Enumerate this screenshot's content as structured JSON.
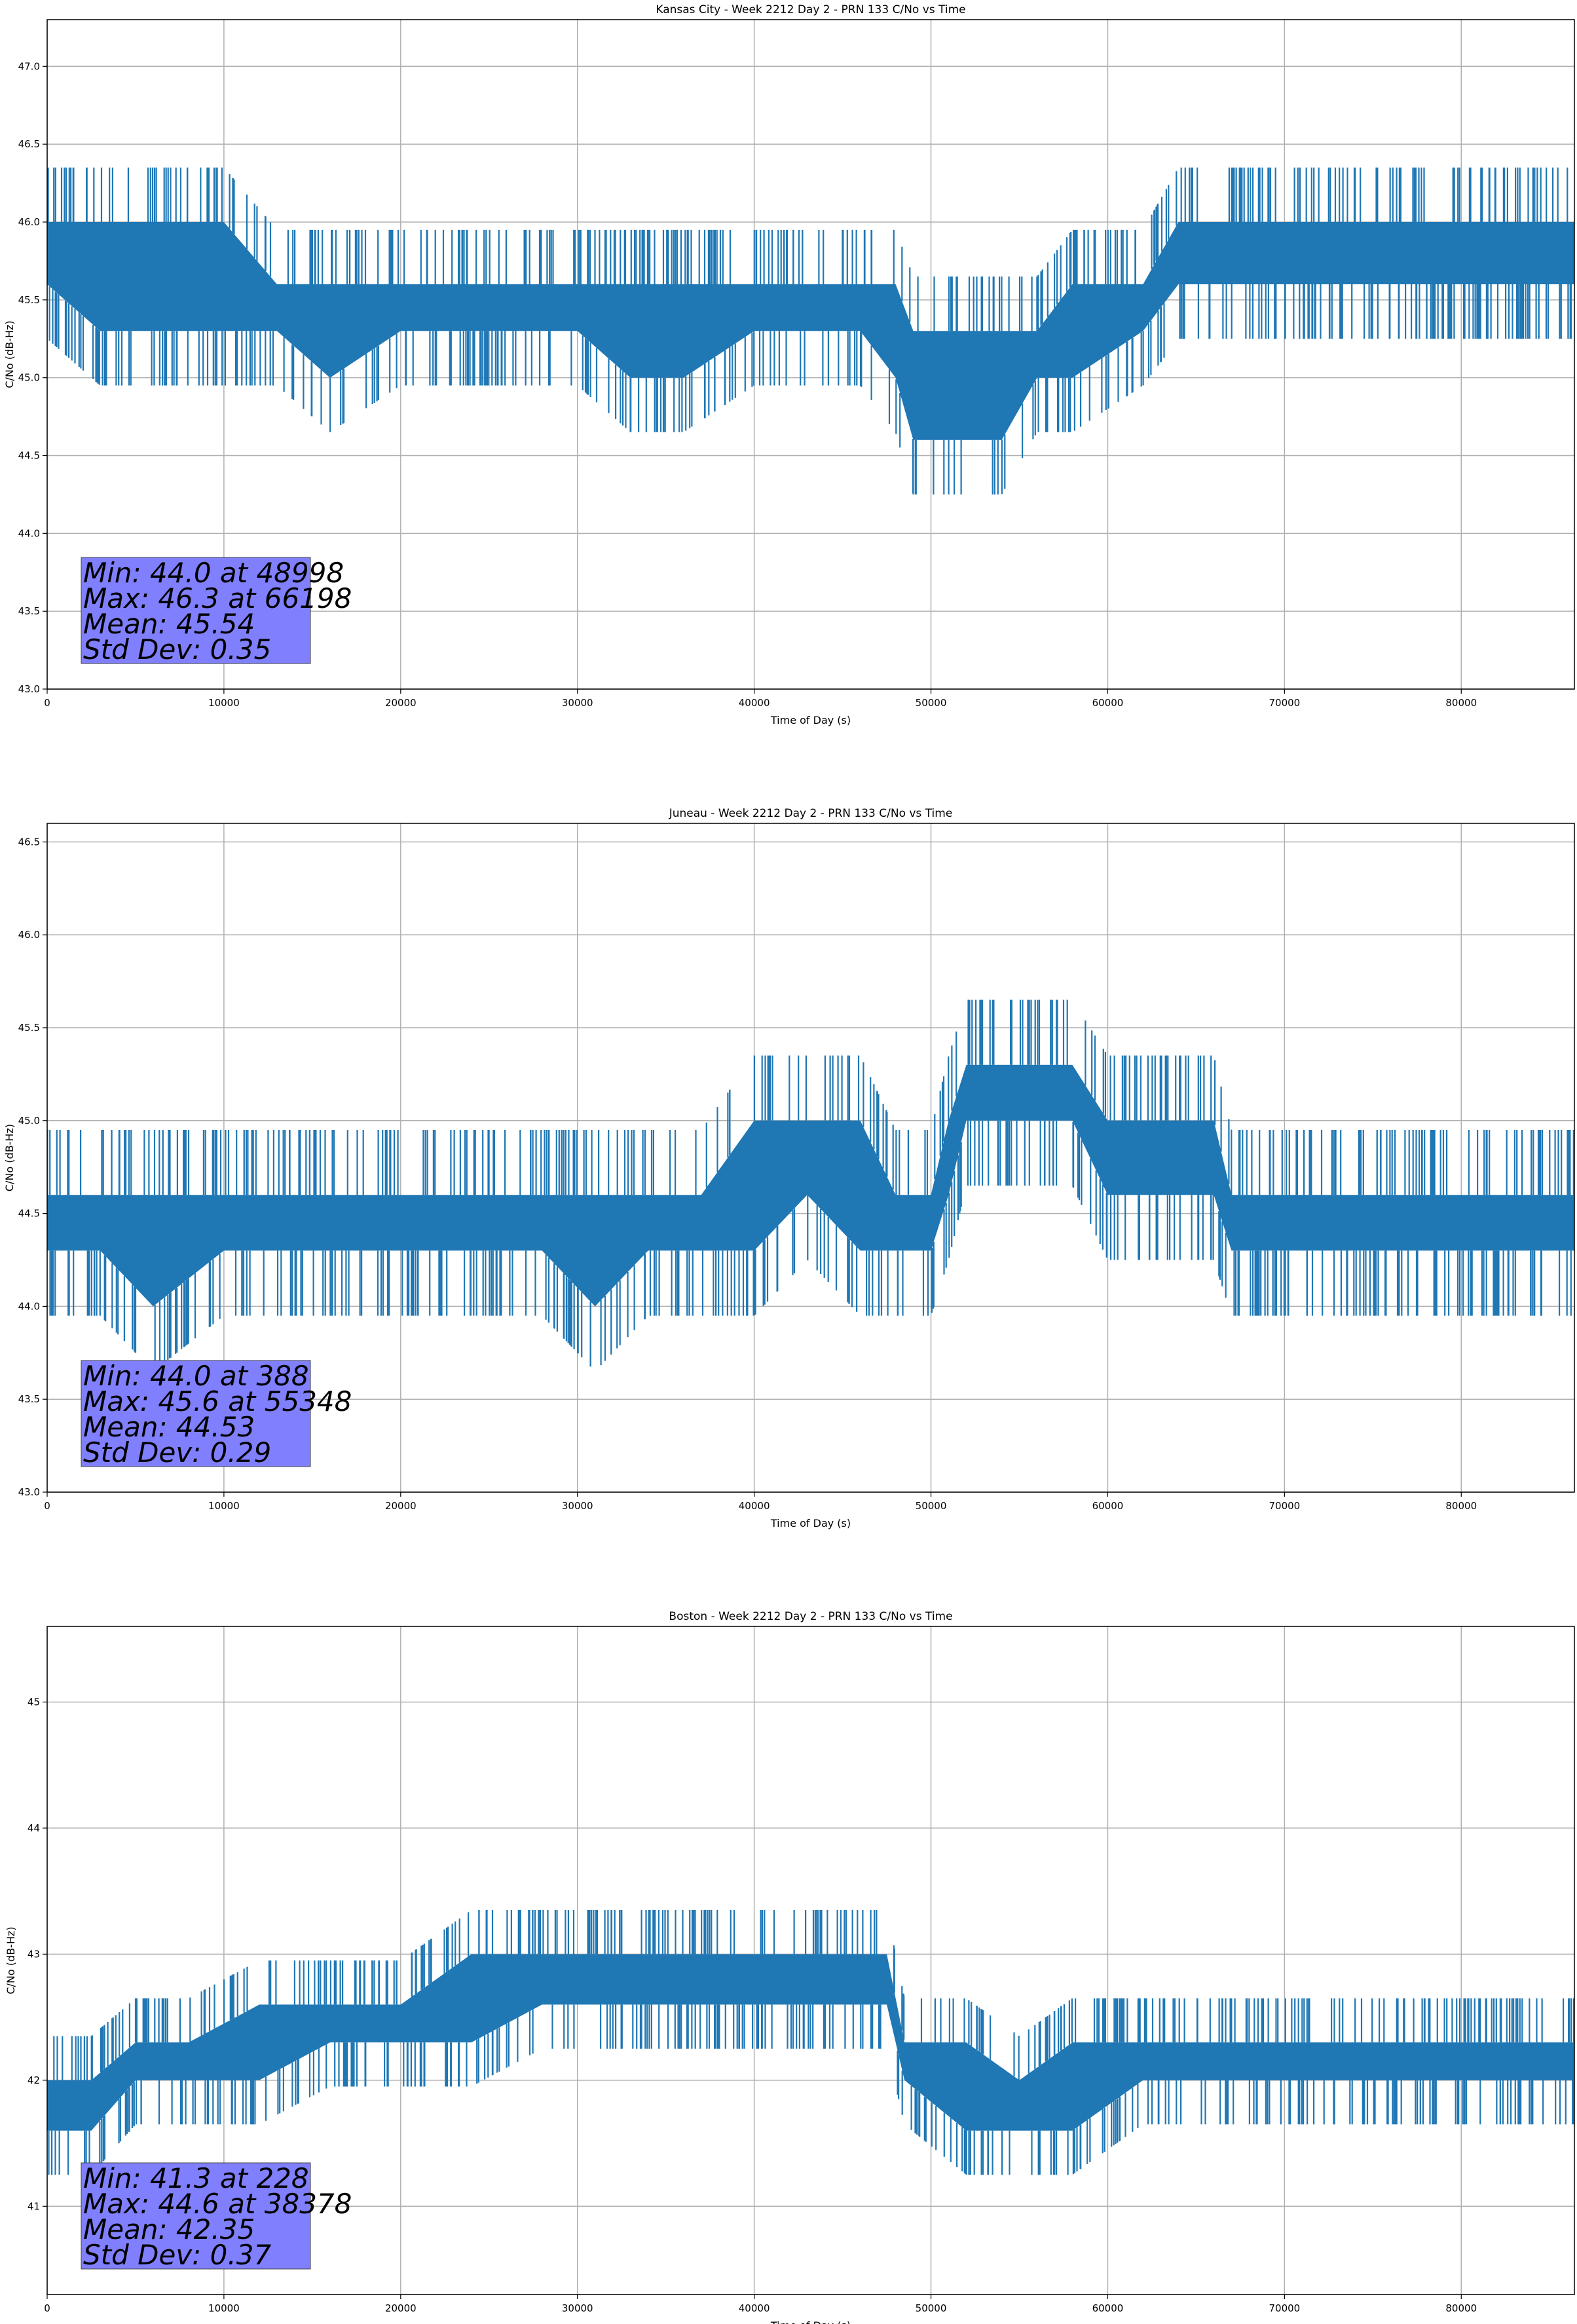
{
  "chart_data": [
    {
      "type": "line",
      "title": "Kansas City - Week 2212 Day 2 - PRN 133 C/No vs Time",
      "xlabel": "Time of Day (s)",
      "ylabel": "C/No (dB-Hz)",
      "xlim": [
        0,
        86400
      ],
      "ylim": [
        43.0,
        47.3
      ],
      "xticks": [
        0,
        10000,
        20000,
        30000,
        40000,
        50000,
        60000,
        70000,
        80000
      ],
      "yticks": [
        "43.0",
        "43.5",
        "44.0",
        "44.5",
        "45.0",
        "45.5",
        "46.0",
        "46.5",
        "47.0"
      ],
      "grid": true,
      "color": "#1f77b4",
      "series": [
        {
          "x": [
            0,
            3000,
            6000,
            10000,
            13000,
            16000,
            20000,
            24000,
            28000,
            30000,
            33000,
            36000,
            40000,
            44000,
            46000,
            48000,
            49000,
            50000,
            52000,
            54000,
            56000,
            58000,
            62000,
            64000,
            66000,
            70000,
            75000,
            80000,
            84000,
            86400
          ],
          "y_low": [
            45.6,
            45.3,
            45.3,
            45.3,
            45.3,
            45.0,
            45.3,
            45.3,
            45.3,
            45.3,
            45.0,
            45.0,
            45.3,
            45.3,
            45.3,
            45.0,
            44.6,
            44.6,
            44.6,
            44.6,
            45.0,
            45.0,
            45.3,
            45.6,
            45.6,
            45.6,
            45.6,
            45.6,
            45.6,
            45.6
          ],
          "y_high": [
            46.0,
            46.0,
            46.0,
            46.0,
            45.6,
            45.6,
            45.6,
            45.6,
            45.6,
            45.6,
            45.6,
            45.6,
            45.6,
            45.6,
            45.6,
            45.6,
            45.3,
            45.3,
            45.3,
            45.3,
            45.3,
            45.6,
            45.6,
            46.0,
            46.0,
            46.0,
            46.0,
            46.0,
            46.0,
            46.0
          ]
        }
      ],
      "annotation": [
        "Min: 44.0 at 48998",
        "Max: 46.3 at 66198",
        "Mean: 45.54",
        "Std Dev: 0.35"
      ],
      "annotation_color": "#8080ff"
    },
    {
      "type": "line",
      "title": "Juneau - Week 2212 Day 2 - PRN 133 C/No vs Time",
      "xlabel": "Time of Day (s)",
      "ylabel": "C/No (dB-Hz)",
      "xlim": [
        0,
        86400
      ],
      "ylim": [
        43.0,
        46.6
      ],
      "xticks": [
        0,
        10000,
        20000,
        30000,
        40000,
        50000,
        60000,
        70000,
        80000
      ],
      "yticks": [
        "43.0",
        "43.5",
        "44.0",
        "44.5",
        "45.0",
        "45.5",
        "46.0",
        "46.5"
      ],
      "grid": true,
      "color": "#1f77b4",
      "series": [
        {
          "x": [
            0,
            3000,
            6000,
            10000,
            15000,
            20000,
            25000,
            28000,
            31000,
            34000,
            37000,
            40000,
            43000,
            46000,
            48000,
            50000,
            51000,
            52000,
            55000,
            58000,
            60000,
            63000,
            66000,
            67000,
            70000,
            75000,
            80000,
            84000,
            86400
          ],
          "y_low": [
            44.3,
            44.3,
            44.0,
            44.3,
            44.3,
            44.3,
            44.3,
            44.3,
            44.0,
            44.3,
            44.3,
            44.3,
            44.6,
            44.3,
            44.3,
            44.3,
            44.6,
            45.0,
            45.0,
            45.0,
            44.6,
            44.6,
            44.6,
            44.3,
            44.3,
            44.3,
            44.3,
            44.3,
            44.3
          ],
          "y_high": [
            44.6,
            44.6,
            44.6,
            44.6,
            44.6,
            44.6,
            44.6,
            44.6,
            44.6,
            44.6,
            44.6,
            45.0,
            45.0,
            45.0,
            44.6,
            44.6,
            45.0,
            45.3,
            45.3,
            45.3,
            45.0,
            45.0,
            45.0,
            44.6,
            44.6,
            44.6,
            44.6,
            44.6,
            44.6
          ]
        }
      ],
      "annotation": [
        "Min: 44.0 at 388",
        "Max: 45.6 at 55348",
        "Mean: 44.53",
        "Std Dev: 0.29"
      ],
      "annotation_color": "#8080ff"
    },
    {
      "type": "line",
      "title": "Boston - Week 2212 Day 2 - PRN 133 C/No vs Time",
      "xlabel": "Time of Day (s)",
      "ylabel": "C/No (dB-Hz)",
      "xlim": [
        0,
        86400
      ],
      "ylim": [
        40.3,
        45.6
      ],
      "xticks": [
        0,
        10000,
        20000,
        30000,
        40000,
        50000,
        60000,
        70000,
        80000
      ],
      "yticks": [
        "41",
        "42",
        "43",
        "44",
        "45"
      ],
      "grid": true,
      "color": "#1f77b4",
      "series": [
        {
          "x": [
            0,
            2500,
            5000,
            8000,
            12000,
            16000,
            20000,
            24000,
            28000,
            32000,
            36000,
            40000,
            44000,
            47500,
            48500,
            52000,
            55000,
            58000,
            62000,
            66000,
            70000,
            74000,
            78000,
            82000,
            86400
          ],
          "y_low": [
            41.6,
            41.6,
            42.0,
            42.0,
            42.0,
            42.3,
            42.3,
            42.3,
            42.6,
            42.6,
            42.6,
            42.6,
            42.6,
            42.6,
            42.0,
            41.6,
            41.6,
            41.6,
            42.0,
            42.0,
            42.0,
            42.0,
            42.0,
            42.0,
            42.0
          ],
          "y_high": [
            42.0,
            42.0,
            42.3,
            42.3,
            42.6,
            42.6,
            42.6,
            43.0,
            43.0,
            43.0,
            43.0,
            43.0,
            43.0,
            43.0,
            42.3,
            42.3,
            42.0,
            42.3,
            42.3,
            42.3,
            42.3,
            42.3,
            42.3,
            42.3,
            42.3
          ]
        }
      ],
      "annotation": [
        "Min: 41.3 at 228",
        "Max: 44.6 at 38378",
        "Mean: 42.35",
        "Std Dev: 0.37"
      ],
      "annotation_color": "#8080ff"
    }
  ]
}
